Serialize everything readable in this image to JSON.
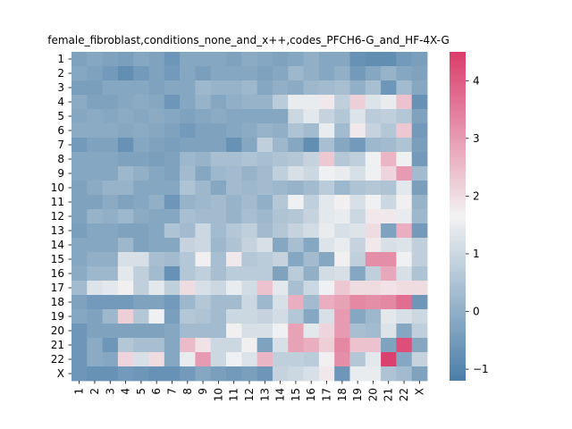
{
  "chart_data": {
    "type": "heatmap",
    "title": "female_fibroblast,conditions_none_and_x++,codes_PFCH6-G_and_HF-4X-G",
    "xlabel": "",
    "ylabel": "",
    "x_labels": [
      "1",
      "2",
      "3",
      "4",
      "5",
      "6",
      "7",
      "8",
      "9",
      "10",
      "11",
      "12",
      "13",
      "14",
      "15",
      "16",
      "17",
      "18",
      "19",
      "20",
      "21",
      "22",
      "X"
    ],
    "y_labels": [
      "1",
      "2",
      "3",
      "4",
      "5",
      "6",
      "7",
      "8",
      "9",
      "10",
      "11",
      "12",
      "13",
      "14",
      "15",
      "16",
      "17",
      "18",
      "19",
      "20",
      "21",
      "22",
      "X"
    ],
    "colorbar": {
      "min": -1.2,
      "max": 4.5,
      "ticks": [
        -1,
        0,
        1,
        2,
        3,
        4
      ]
    },
    "colormap": {
      "low": "#4a7ea8",
      "mid": "#f2f2f2",
      "high": "#da3b6a"
    },
    "values": [
      [
        -0.3,
        -0.2,
        -0.3,
        -0.4,
        -0.2,
        -0.3,
        -0.6,
        -0.2,
        -0.2,
        -0.2,
        -0.3,
        -0.1,
        -0.2,
        -0.3,
        -0.2,
        0.0,
        -0.2,
        -0.2,
        -0.7,
        -0.8,
        -0.8,
        -0.5,
        -0.4
      ],
      [
        -0.2,
        -0.3,
        -0.5,
        -0.8,
        -0.5,
        -0.3,
        -0.5,
        -0.2,
        -0.4,
        -0.2,
        -0.2,
        -0.2,
        -0.3,
        -0.2,
        0.2,
        0.0,
        -0.2,
        0.0,
        -0.5,
        -0.2,
        0.1,
        -0.2,
        -0.3
      ],
      [
        -0.4,
        -0.4,
        -0.2,
        -0.2,
        -0.2,
        -0.3,
        -0.2,
        -0.2,
        0.2,
        0.1,
        0.1,
        0.2,
        -0.2,
        0.0,
        -0.1,
        0.2,
        0.3,
        0.4,
        0.0,
        0.4,
        -0.6,
        0.3,
        -0.2
      ],
      [
        -0.1,
        -0.3,
        -0.3,
        -0.2,
        -0.1,
        -0.2,
        -0.6,
        -0.2,
        0.1,
        -0.2,
        0.0,
        0.1,
        0.1,
        0.7,
        1.5,
        1.5,
        1.8,
        0.8,
        2.2,
        1.3,
        1.5,
        2.4,
        -0.7
      ],
      [
        -0.2,
        -0.1,
        -0.2,
        -0.1,
        -0.2,
        -0.1,
        -0.2,
        -0.3,
        -0.2,
        -0.1,
        -0.2,
        -0.2,
        -0.2,
        -0.2,
        1.0,
        1.4,
        0.9,
        0.6,
        1.3,
        0.7,
        0.8,
        0.6,
        -0.3
      ],
      [
        -0.1,
        -0.1,
        -0.1,
        -0.2,
        -0.1,
        -0.2,
        -0.3,
        -0.5,
        -0.3,
        -0.3,
        -0.2,
        -0.1,
        0.1,
        0.0,
        0.5,
        0.3,
        1.5,
        0.3,
        1.8,
        0.9,
        0.6,
        2.3,
        -0.5
      ],
      [
        -0.5,
        -0.3,
        -0.3,
        -0.7,
        -0.2,
        -0.3,
        -0.4,
        -0.3,
        -0.3,
        -0.3,
        -0.7,
        -0.2,
        0.8,
        0.2,
        -0.2,
        -0.8,
        0.4,
        -0.2,
        -0.5,
        0.2,
        0.3,
        0.5,
        -0.4
      ],
      [
        -0.2,
        -0.2,
        -0.2,
        -0.3,
        -0.3,
        -0.4,
        -0.3,
        0.2,
        0.1,
        0.4,
        0.4,
        0.5,
        0.4,
        0.5,
        0.6,
        0.9,
        2.3,
        0.6,
        0.8,
        1.6,
        2.6,
        1.6,
        -0.5
      ],
      [
        -0.2,
        -0.2,
        -0.2,
        0.2,
        0.0,
        -0.2,
        -0.3,
        0.3,
        -0.2,
        0.2,
        0.3,
        0.1,
        0.3,
        0.8,
        1.2,
        1.0,
        1.6,
        1.5,
        1.2,
        1.6,
        2.1,
        3.0,
        0.3
      ],
      [
        -0.3,
        -0.1,
        0.1,
        0.1,
        -0.2,
        -0.2,
        -0.2,
        0.5,
        0.2,
        -0.2,
        0.3,
        0.2,
        0.3,
        0.2,
        0.1,
        0.3,
        0.7,
        0.2,
        0.5,
        0.6,
        0.5,
        1.4,
        -0.4
      ],
      [
        -0.3,
        -0.3,
        -0.1,
        -0.3,
        -0.2,
        0.0,
        -0.6,
        0.1,
        0.2,
        0.3,
        0.1,
        0.3,
        0.0,
        0.6,
        1.6,
        0.8,
        1.4,
        1.7,
        1.2,
        1.6,
        1.0,
        1.7,
        0.1
      ],
      [
        -0.3,
        0.1,
        0.0,
        0.2,
        -0.1,
        -0.2,
        -0.2,
        0.4,
        0.3,
        0.3,
        0.1,
        0.4,
        0.2,
        0.5,
        0.6,
        0.9,
        1.4,
        1.5,
        1.0,
        1.8,
        1.8,
        1.5,
        0.2
      ],
      [
        -0.4,
        -0.2,
        -0.2,
        -0.3,
        -0.3,
        -0.2,
        0.5,
        0.3,
        1.0,
        0.3,
        0.6,
        0.8,
        0.3,
        0.6,
        0.9,
        1.1,
        1.5,
        1.2,
        1.3,
        2.0,
        -0.3,
        2.7,
        -0.5
      ],
      [
        -0.2,
        -0.2,
        -0.2,
        0.2,
        -0.3,
        -0.2,
        -0.2,
        0.9,
        1.0,
        0.2,
        0.5,
        0.9,
        1.2,
        -0.2,
        0.4,
        -0.2,
        1.3,
        1.5,
        0.9,
        1.8,
        1.2,
        1.3,
        0.8
      ],
      [
        -0.2,
        0.0,
        0.0,
        1.2,
        1.2,
        0.4,
        0.3,
        0.6,
        1.7,
        0.4,
        1.8,
        0.6,
        0.7,
        0.9,
        -0.2,
        0.3,
        -0.2,
        1.7,
        0.8,
        3.2,
        3.2,
        1.6,
        0.8
      ],
      [
        -0.1,
        0.2,
        0.2,
        1.4,
        0.8,
        0.3,
        -0.7,
        0.6,
        0.8,
        0.4,
        0.7,
        0.7,
        0.7,
        -0.3,
        0.7,
        0.0,
        1.1,
        1.2,
        -0.2,
        0.8,
        2.8,
        1.2,
        0.5
      ],
      [
        0.3,
        1.3,
        1.4,
        1.7,
        0.8,
        1.4,
        0.8,
        2.0,
        1.2,
        1.0,
        1.5,
        1.1,
        2.4,
        1.4,
        0.4,
        1.0,
        1.6,
        2.3,
        2.0,
        2.0,
        1.9,
        2.0,
        2.0
      ],
      [
        -0.3,
        -0.5,
        -0.5,
        -0.5,
        -0.3,
        -0.3,
        -0.5,
        0.2,
        0.6,
        0.3,
        0.3,
        1.0,
        0.2,
        1.2,
        2.7,
        0.3,
        2.7,
        2.9,
        3.3,
        3.2,
        3.3,
        3.7,
        -0.6
      ],
      [
        -0.2,
        -0.3,
        0.2,
        2.2,
        0.6,
        1.6,
        -0.4,
        0.6,
        0.5,
        0.3,
        1.0,
        1.0,
        0.9,
        1.1,
        0.6,
        -0.2,
        1.2,
        3.0,
        -0.2,
        0.2,
        1.4,
        1.2,
        1.0
      ],
      [
        -0.6,
        -0.3,
        -0.3,
        -0.3,
        -0.3,
        -0.3,
        -0.2,
        0.3,
        0.3,
        0.3,
        1.7,
        1.2,
        1.2,
        1.6,
        2.9,
        1.4,
        2.1,
        3.0,
        0.4,
        0.3,
        1.3,
        -0.2,
        0.8
      ],
      [
        -0.6,
        -0.1,
        -0.6,
        0.6,
        0.4,
        0.4,
        -0.2,
        2.5,
        1.9,
        1.0,
        1.0,
        1.7,
        -0.3,
        1.2,
        2.9,
        2.7,
        2.2,
        3.3,
        2.4,
        2.4,
        -0.3,
        4.2,
        -0.2
      ],
      [
        -0.6,
        -0.1,
        -0.2,
        2.1,
        1.2,
        2.0,
        -0.2,
        1.5,
        3.0,
        1.0,
        1.6,
        1.3,
        2.6,
        0.8,
        0.8,
        0.7,
        1.7,
        3.2,
        0.6,
        1.4,
        4.4,
        -0.2,
        0.9
      ],
      [
        -0.6,
        -0.7,
        -0.7,
        -0.5,
        -0.6,
        -0.7,
        -0.7,
        -0.5,
        -0.2,
        -0.4,
        -0.5,
        -0.4,
        -0.6,
        0.9,
        1.0,
        1.2,
        1.8,
        -0.6,
        1.5,
        1.5,
        0.5,
        0.3,
        -0.3
      ]
    ]
  }
}
